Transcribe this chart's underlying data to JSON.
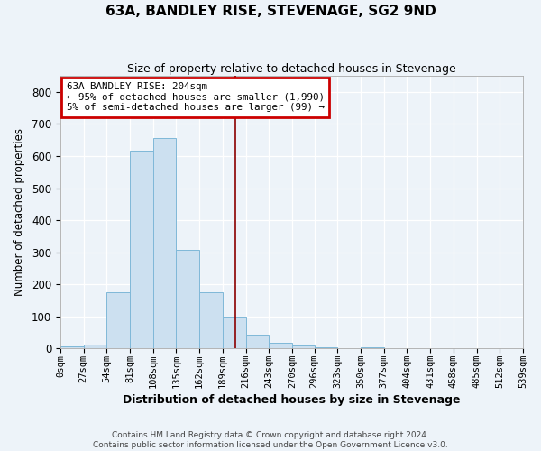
{
  "title": "63A, BANDLEY RISE, STEVENAGE, SG2 9ND",
  "subtitle": "Size of property relative to detached houses in Stevenage",
  "xlabel": "Distribution of detached houses by size in Stevenage",
  "ylabel": "Number of detached properties",
  "bar_values": [
    7,
    13,
    175,
    617,
    655,
    307,
    175,
    98,
    43,
    17,
    10,
    5,
    0,
    5,
    0,
    0,
    0,
    0,
    0,
    0
  ],
  "bin_edges": [
    0,
    27,
    54,
    81,
    108,
    135,
    162,
    189,
    216,
    243,
    270,
    296,
    323,
    350,
    377,
    404,
    431,
    458,
    485,
    512,
    539
  ],
  "tick_labels": [
    "0sqm",
    "27sqm",
    "54sqm",
    "81sqm",
    "108sqm",
    "135sqm",
    "162sqm",
    "189sqm",
    "216sqm",
    "243sqm",
    "270sqm",
    "296sqm",
    "323sqm",
    "350sqm",
    "377sqm",
    "404sqm",
    "431sqm",
    "458sqm",
    "485sqm",
    "512sqm",
    "539sqm"
  ],
  "bar_color": "#cce0f0",
  "bar_edge_color": "#7fb8d8",
  "vline_x": 204,
  "vline_color": "#8b0000",
  "annotation_text": "63A BANDLEY RISE: 204sqm\n← 95% of detached houses are smaller (1,990)\n5% of semi-detached houses are larger (99) →",
  "annotation_box_facecolor": "#ffffff",
  "annotation_box_edgecolor": "#cc0000",
  "fig_facecolor": "#edf3f9",
  "ax_facecolor": "#edf3f9",
  "grid_color": "#ffffff",
  "ylim": [
    0,
    850
  ],
  "yticks": [
    0,
    100,
    200,
    300,
    400,
    500,
    600,
    700,
    800
  ],
  "footer_line1": "Contains HM Land Registry data © Crown copyright and database right 2024.",
  "footer_line2": "Contains public sector information licensed under the Open Government Licence v3.0."
}
